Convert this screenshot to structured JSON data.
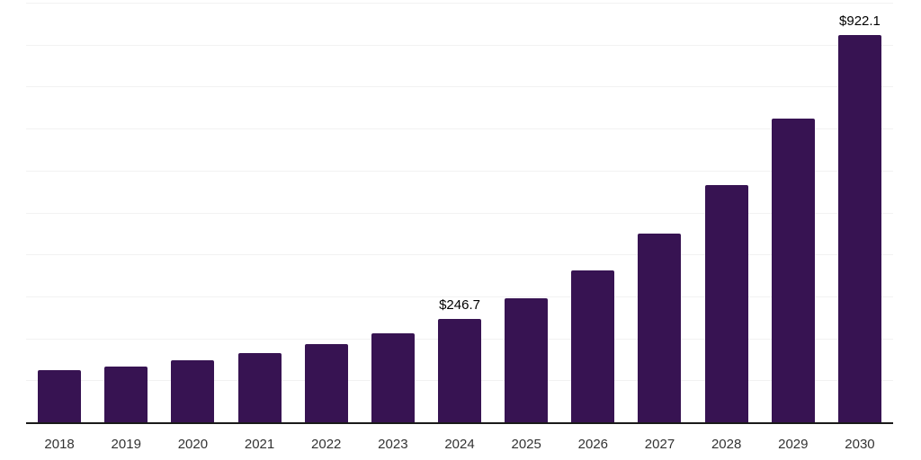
{
  "chart_data": {
    "type": "bar",
    "title": "",
    "xlabel": "",
    "ylabel": "",
    "categories": [
      "2018",
      "2019",
      "2020",
      "2021",
      "2022",
      "2023",
      "2024",
      "2025",
      "2026",
      "2027",
      "2028",
      "2029",
      "2030"
    ],
    "values": [
      124.2,
      132.8,
      147.7,
      164.9,
      186.3,
      212.0,
      246.7,
      295.5,
      361.9,
      449.7,
      565.3,
      724.8,
      922.1
    ],
    "data_labels": {
      "2024": "$246.7",
      "2030": "$922.1"
    },
    "ylim": [
      0,
      1000
    ],
    "gridline_count": 10,
    "gridline_interval": 100,
    "grid": "horizontal",
    "legend": "none",
    "y_axis_tick_labels": "none"
  },
  "colors": {
    "bar": "#371352",
    "axis_line": "#1a1a1a",
    "gridline": "#f2f2f2",
    "tick_label": "#333333",
    "value_label": "#000000",
    "background": "#ffffff"
  }
}
